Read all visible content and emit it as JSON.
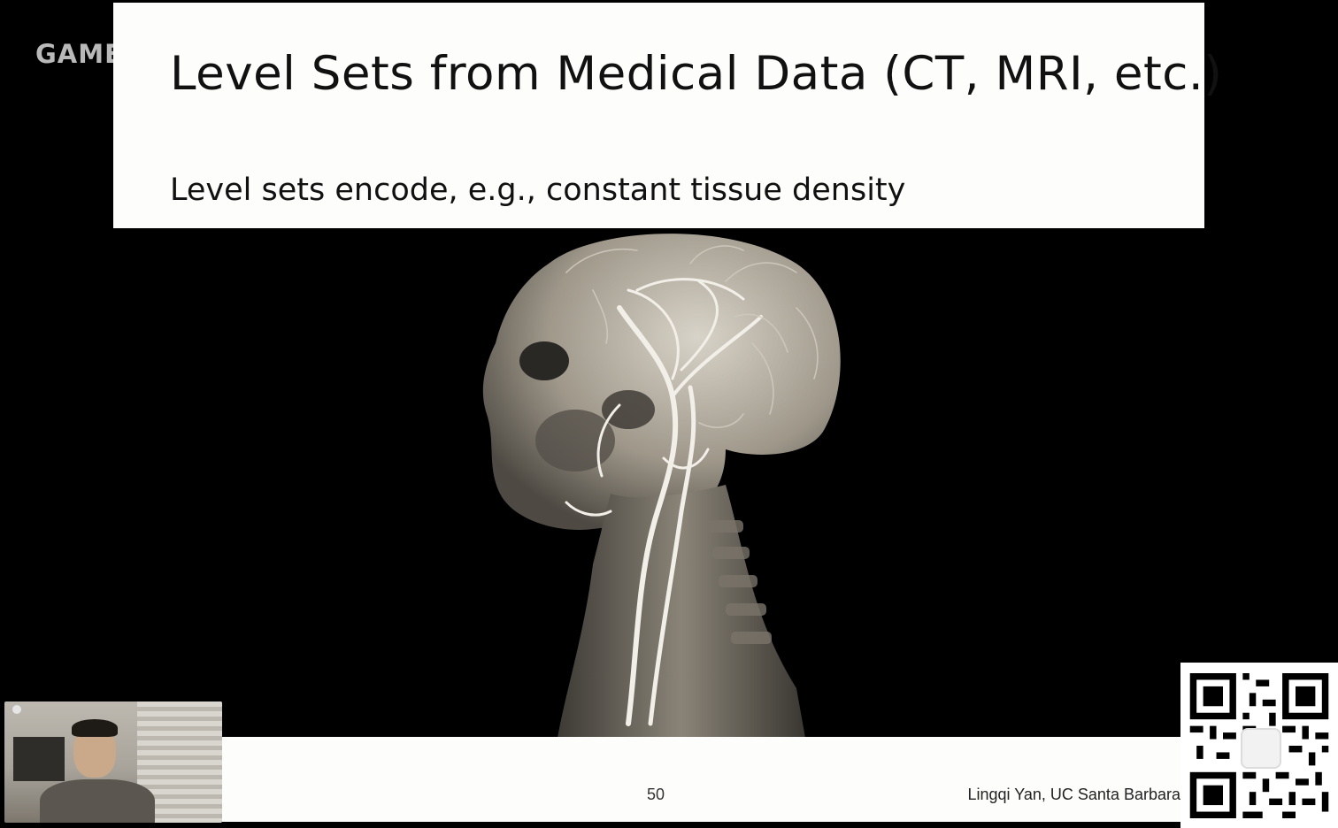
{
  "channel": {
    "logo_text": "GAMES"
  },
  "slide": {
    "title": "Level Sets from Medical Data (CT, MRI, etc.)",
    "subtitle": "Level sets encode, e.g., constant tissue density",
    "page_number": "50",
    "author": "Lingqi Yan, UC Santa Barbara"
  },
  "colors": {
    "slide_background": "#fdfdfb",
    "stage_background": "#000000",
    "text": "#111111"
  },
  "icons": {
    "webcam": "presenter-webcam",
    "qr": "qr-code-icon"
  }
}
